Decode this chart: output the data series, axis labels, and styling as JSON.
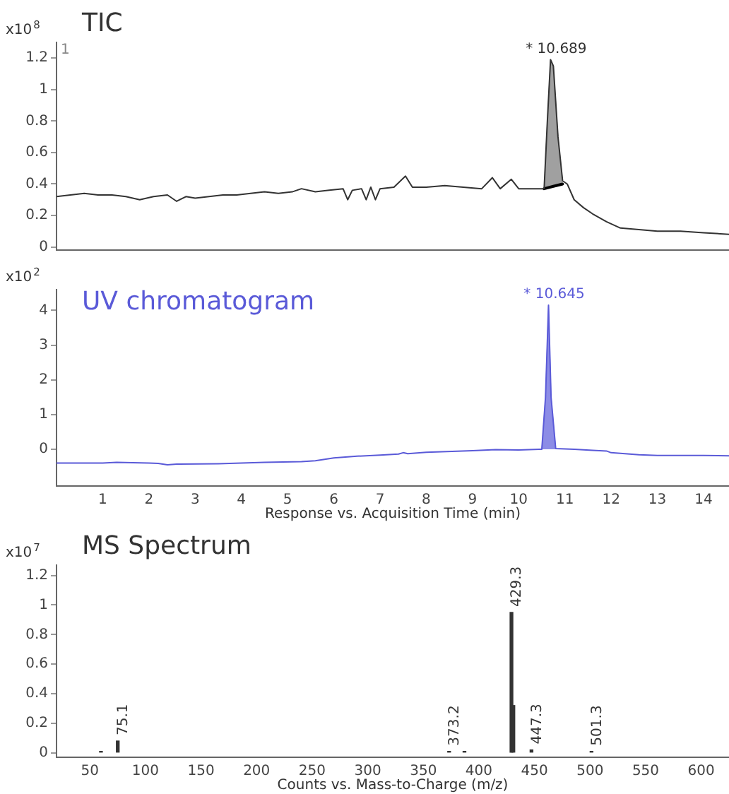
{
  "chart_data": [
    {
      "type": "line",
      "title": "TIC",
      "ylabel": "x10$^{8}$",
      "marker": "none",
      "tick_labels": "y",
      "xlim": [
        0,
        14.55
      ],
      "ylim": [
        -0.02,
        1.3
      ],
      "yticks": [
        0,
        0.2,
        0.4,
        0.6,
        0.8,
        1,
        1.2
      ],
      "annotations": [
        "1",
        {
          "text": "* 10.689",
          "x": 10.689,
          "y": 1.19
        }
      ],
      "series": [
        {
          "color": "#333333",
          "x": [
            0,
            0.3,
            0.6,
            0.9,
            1.2,
            1.5,
            1.8,
            2.1,
            2.4,
            2.6,
            2.8,
            3.0,
            3.3,
            3.6,
            3.9,
            4.2,
            4.5,
            4.8,
            5.1,
            5.3,
            5.6,
            5.9,
            6.2,
            6.3,
            6.4,
            6.6,
            6.7,
            6.8,
            6.9,
            7.0,
            7.3,
            7.55,
            7.7,
            8.0,
            8.4,
            8.8,
            9.2,
            9.43,
            9.6,
            9.84,
            10.0,
            10.3,
            10.55,
            10.62,
            10.689,
            10.75,
            10.85,
            10.95,
            11.05,
            11.2,
            11.4,
            11.6,
            11.9,
            12.2,
            12.6,
            13.0,
            13.5,
            14.0,
            14.55
          ],
          "values": [
            0.32,
            0.33,
            0.34,
            0.33,
            0.33,
            0.32,
            0.3,
            0.32,
            0.33,
            0.29,
            0.32,
            0.31,
            0.32,
            0.33,
            0.33,
            0.34,
            0.35,
            0.34,
            0.35,
            0.37,
            0.35,
            0.36,
            0.37,
            0.3,
            0.36,
            0.37,
            0.3,
            0.38,
            0.3,
            0.37,
            0.38,
            0.45,
            0.38,
            0.38,
            0.39,
            0.38,
            0.37,
            0.44,
            0.37,
            0.43,
            0.37,
            0.37,
            0.37,
            0.8,
            1.19,
            1.15,
            0.7,
            0.42,
            0.4,
            0.3,
            0.25,
            0.21,
            0.16,
            0.12,
            0.11,
            0.1,
            0.1,
            0.09,
            0.08
          ]
        },
        {
          "type": "area",
          "color": "#a0a0a0",
          "x": [
            10.55,
            10.62,
            10.689,
            10.75,
            10.85,
            10.95
          ],
          "values": [
            0.37,
            0.8,
            1.19,
            1.15,
            0.7,
            0.42
          ]
        },
        {
          "type": "line",
          "color": "#000000",
          "x": [
            10.55,
            10.75,
            10.95
          ],
          "values": [
            0.37,
            0.385,
            0.4
          ]
        }
      ]
    },
    {
      "type": "line",
      "title": "UV chromatogram",
      "ylabel": "x10$^{2}$",
      "xlabel": "Response vs. Acquisition Time (min)",
      "marker": "none",
      "xlim": [
        0,
        14.55
      ],
      "xticks": [
        1,
        2,
        3,
        4,
        5,
        6,
        7,
        8,
        9,
        10,
        11,
        12,
        13,
        14
      ],
      "ylim": [
        -1.06,
        4.6
      ],
      "yticks": [
        0,
        1,
        2,
        3,
        4
      ],
      "annotations": [
        {
          "text": "* 10.645",
          "x": 10.645,
          "y": 4.15
        }
      ],
      "series": [
        {
          "color": "#5a5ad8",
          "x": [
            0,
            1,
            1.3,
            2,
            2.2,
            2.4,
            2.6,
            3.5,
            4.5,
            5.3,
            5.6,
            6,
            6.5,
            7,
            7.4,
            7.5,
            7.6,
            8,
            9,
            9.5,
            10,
            10.5,
            10.58,
            10.645,
            10.7,
            10.8,
            11.2,
            11.6,
            11.9,
            12.0,
            12.2,
            12.6,
            13,
            14,
            14.55
          ],
          "values": [
            -0.4,
            -0.4,
            -0.38,
            -0.4,
            -0.41,
            -0.45,
            -0.43,
            -0.42,
            -0.38,
            -0.36,
            -0.33,
            -0.25,
            -0.2,
            -0.17,
            -0.14,
            -0.1,
            -0.13,
            -0.09,
            -0.04,
            -0.01,
            -0.02,
            0.0,
            1.5,
            4.15,
            1.5,
            0.02,
            0.0,
            -0.03,
            -0.05,
            -0.1,
            -0.12,
            -0.16,
            -0.18,
            -0.18,
            -0.19
          ]
        },
        {
          "type": "area",
          "color": "#8c8ce6",
          "x": [
            10.5,
            10.58,
            10.645,
            10.7,
            10.8
          ],
          "values": [
            0.0,
            1.5,
            4.15,
            1.5,
            0.02
          ]
        }
      ]
    },
    {
      "type": "bar",
      "title": "MS Spectrum",
      "ylabel": "x10$^{7}$",
      "xlabel": "Counts vs. Mass-to-Charge (m/z)",
      "xlim": [
        20,
        625
      ],
      "xticks": [
        50,
        100,
        150,
        200,
        250,
        300,
        350,
        400,
        450,
        500,
        550,
        600
      ],
      "ylim": [
        -0.03,
        1.27
      ],
      "yticks": [
        0,
        0.2,
        0.4,
        0.6,
        0.8,
        1,
        1.2
      ],
      "annotations": [
        {
          "text": "75.1",
          "x": 75.1,
          "y": 0.08
        },
        {
          "text": "373.2",
          "x": 373.2,
          "y": 0.01
        },
        {
          "text": "429.3",
          "x": 429.3,
          "y": 0.95
        },
        {
          "text": "447.3",
          "x": 447.3,
          "y": 0.02
        },
        {
          "text": "501.3",
          "x": 501.3,
          "y": 0.01
        }
      ],
      "series": [
        {
          "color": "#333333",
          "x": [
            60,
            75.1,
            373.2,
            387,
            429.3,
            431,
            447.3,
            501.3
          ],
          "values": [
            0.01,
            0.08,
            0.01,
            0.01,
            0.95,
            0.32,
            0.02,
            0.01
          ]
        }
      ]
    }
  ]
}
